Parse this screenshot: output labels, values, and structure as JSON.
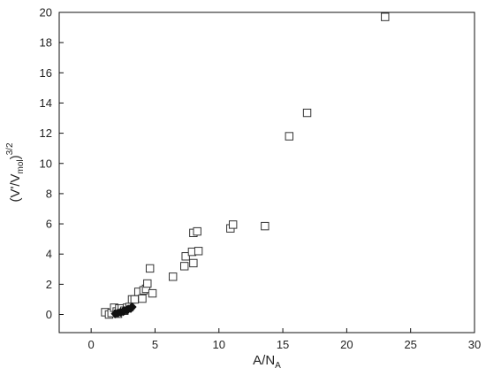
{
  "chart_data": {
    "type": "scatter",
    "title": "",
    "xlabel": {
      "base": "A/N",
      "sub": "A"
    },
    "ylabel": {
      "open": "(V'/V",
      "sub": "mol",
      "close": ")",
      "sup": "3/2"
    },
    "xlim": [
      -2.5,
      30
    ],
    "ylim": [
      -1.2,
      20
    ],
    "x_ticks": [
      0,
      5,
      10,
      15,
      20,
      25,
      30
    ],
    "y_ticks": [
      0,
      2,
      4,
      6,
      8,
      10,
      12,
      14,
      16,
      18,
      20
    ],
    "grid": false,
    "series": [
      {
        "marker": "open-square",
        "color": "#333333",
        "points": [
          [
            1.1,
            0.15
          ],
          [
            1.4,
            0.0
          ],
          [
            1.6,
            0.1
          ],
          [
            1.8,
            0.45
          ],
          [
            2.0,
            0.2
          ],
          [
            2.1,
            0.05
          ],
          [
            2.2,
            0.4
          ],
          [
            2.4,
            0.4
          ],
          [
            2.6,
            0.25
          ],
          [
            2.8,
            0.45
          ],
          [
            3.0,
            0.5
          ],
          [
            3.2,
            1.0
          ],
          [
            3.4,
            1.0
          ],
          [
            3.7,
            1.5
          ],
          [
            4.0,
            1.05
          ],
          [
            4.1,
            1.6
          ],
          [
            4.3,
            1.7
          ],
          [
            4.4,
            2.05
          ],
          [
            4.6,
            3.05
          ],
          [
            4.8,
            1.4
          ],
          [
            6.4,
            2.5
          ],
          [
            7.3,
            3.2
          ],
          [
            7.4,
            3.85
          ],
          [
            7.9,
            4.15
          ],
          [
            8.0,
            5.4
          ],
          [
            8.0,
            3.4
          ],
          [
            8.3,
            5.5
          ],
          [
            8.4,
            4.2
          ],
          [
            10.9,
            5.7
          ],
          [
            11.1,
            5.95
          ],
          [
            13.6,
            5.85
          ],
          [
            15.5,
            11.8
          ],
          [
            16.9,
            13.35
          ],
          [
            23.0,
            19.7
          ]
        ]
      },
      {
        "marker": "filled-diamond",
        "color": "#111111",
        "points": [
          [
            1.9,
            0.05
          ],
          [
            2.1,
            0.1
          ],
          [
            2.3,
            0.15
          ],
          [
            2.5,
            0.2
          ],
          [
            2.6,
            0.25
          ],
          [
            2.8,
            0.3
          ],
          [
            2.9,
            0.35
          ],
          [
            3.1,
            0.4
          ],
          [
            3.2,
            0.5
          ]
        ]
      }
    ]
  }
}
